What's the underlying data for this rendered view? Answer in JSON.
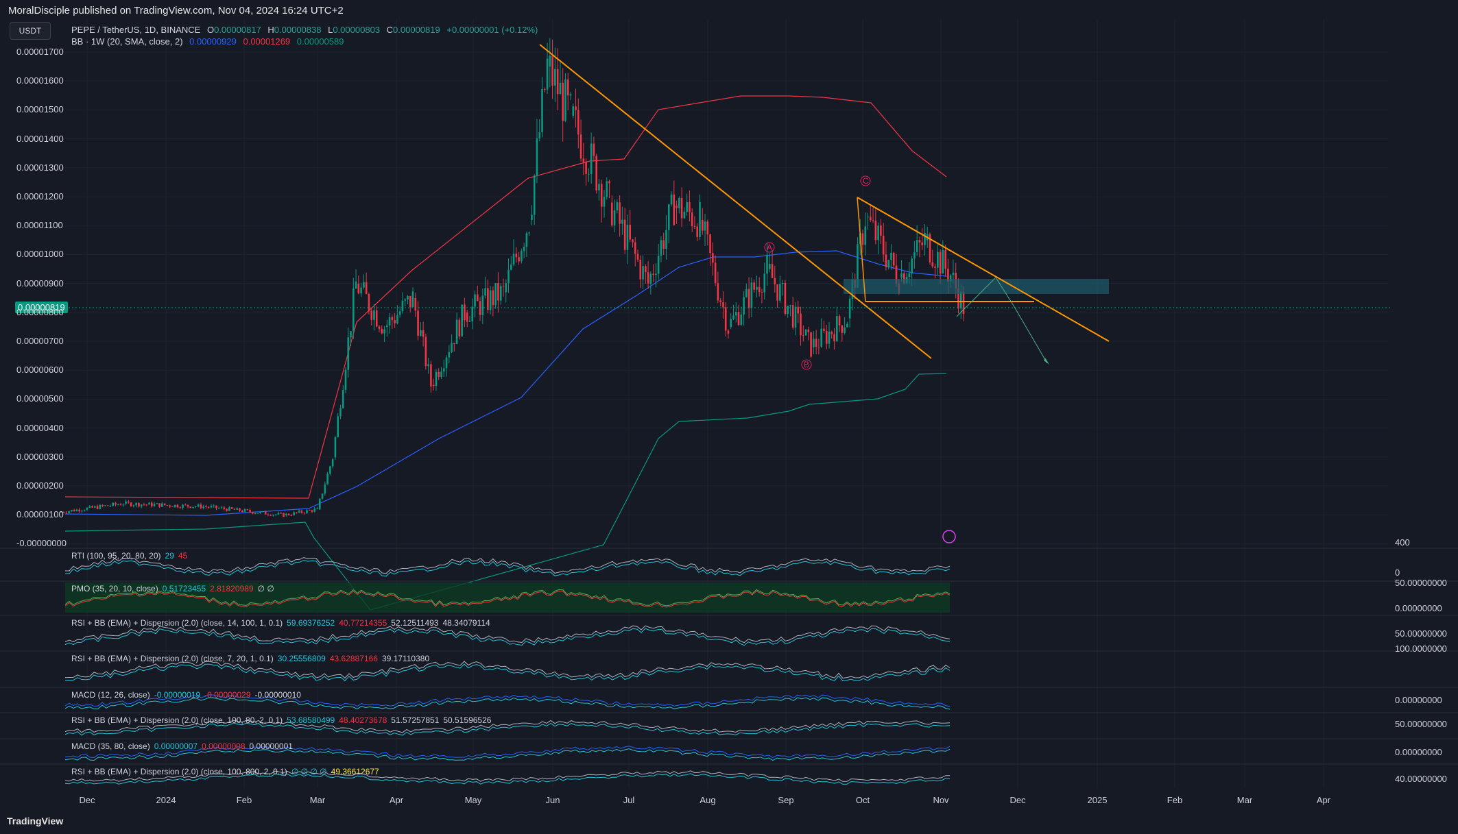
{
  "header": {
    "publisher": "MoralDisciple published on TradingView.com, Nov 04, 2024 16:24 UTC+2"
  },
  "currency_button": "USDT",
  "symbol_line": {
    "symbol": "PEPE / TetherUS, 1D, BINANCE",
    "o_label": "O",
    "o": "0.00000817",
    "h_label": "H",
    "h": "0.00000838",
    "l_label": "L",
    "l": "0.00000803",
    "c_label": "C",
    "c": "0.00000819",
    "change": "+0.00000001 (+0.12%)"
  },
  "bb_line": {
    "label": "BB · 1W (20, SMA, close, 2)",
    "basis": "0.00000929",
    "upper": "0.00001269",
    "lower": "0.00000589"
  },
  "current_price": "0.00000819",
  "wave_labels": [
    "A",
    "B",
    "C"
  ],
  "indicators": [
    {
      "label": "RTI (100, 95, 20, 80, 20)",
      "v1": "29",
      "v2": "45"
    },
    {
      "label": "PMO (35, 20, 10, close)",
      "v1": "0.51723455",
      "v2": "2.81820989",
      "v3": "∅ ∅"
    },
    {
      "label": "RSI + BB (EMA) + Dispersion (2.0) (close, 14, 100, 1, 0.1)",
      "v1": "59.69376252",
      "v2": "40.77214355",
      "v3": "52.12511493",
      "v4": "48.34079114"
    },
    {
      "label": "RSI + BB (EMA) + Dispersion (2.0) (close, 7, 20, 1, 0.1)",
      "v1": "30.25556809",
      "v2": "43.62887166",
      "v3": "39.17110380"
    },
    {
      "label": "MACD (12, 26, close)",
      "v1": "-0.00000019",
      "v2": "-0.00000029",
      "v3": "-0.00000010"
    },
    {
      "label": "RSI + BB (EMA) + Dispersion (2.0) (close, 100, 80, 2, 0.1)",
      "v1": "53.68580499",
      "v2": "48.40273678",
      "v3": "51.57257851",
      "v4": "50.51596526"
    },
    {
      "label": "MACD (35, 80, close)",
      "v1": "0.00000007",
      "v2": "0.00000008",
      "v3": "0.00000001"
    },
    {
      "label": "RSI + BB (EMA) + Dispersion (2.0) (close, 100, 800, 2, 0.1)",
      "v1": "∅ ∅ ∅ ∅",
      "v2": "49.36612677"
    }
  ],
  "pane_scale_labels": [
    "400",
    "0",
    "50.00000000",
    "0.00000000",
    "50.00000000",
    "100.0000000",
    "0.00000000",
    "50.00000000",
    "0.00000000",
    "40.00000000"
  ],
  "footer_logo": "TradingView",
  "colors": {
    "up": "#089981",
    "down": "#f23645",
    "bb_upper": "#f23645",
    "bb_basis": "#2962ff",
    "bb_lower": "#089981",
    "trendline": "#ff9800",
    "wave": "#e91e63",
    "zone": "#1e5d6b"
  },
  "chart_data": {
    "type": "line",
    "title": "PEPE / TetherUS, 1D, BINANCE",
    "xlabel": "",
    "ylabel": "",
    "x_ticks": [
      "Dec",
      "2024",
      "Feb",
      "Mar",
      "Apr",
      "May",
      "Jun",
      "Jul",
      "Aug",
      "Sep",
      "Oct",
      "Nov",
      "Dec",
      "2025",
      "Feb",
      "Mar",
      "Apr"
    ],
    "y_ticks": [
      "0.00001700",
      "0.00001600",
      "0.00001500",
      "0.00001400",
      "0.00001300",
      "0.00001200",
      "0.00001100",
      "0.00001000",
      "0.00000900",
      "0.00000800",
      "0.00000700",
      "0.00000600",
      "0.00000500",
      "0.00000400",
      "0.00000300",
      "0.00000200",
      "0.00000100",
      "-0.00000000"
    ],
    "ylim": [
      0,
      1.79e-05
    ],
    "series": [
      {
        "name": "Price (close, approx)",
        "x": [
          "2023-11-20",
          "2023-12-15",
          "2024-01-15",
          "2024-02-15",
          "2024-02-28",
          "2024-03-05",
          "2024-03-14",
          "2024-03-25",
          "2024-04-05",
          "2024-04-12",
          "2024-04-25",
          "2024-05-10",
          "2024-05-20",
          "2024-05-27",
          "2024-06-05",
          "2024-06-20",
          "2024-07-05",
          "2024-07-15",
          "2024-07-25",
          "2024-08-05",
          "2024-08-20",
          "2024-09-06",
          "2024-09-20",
          "2024-09-27",
          "2024-10-10",
          "2024-10-20",
          "2024-10-30",
          "2024-11-04"
        ],
        "y": [
          1.1e-06,
          1.4e-06,
          1.3e-06,
          1e-06,
          1.2e-06,
          3e-06,
          9e-06,
          7.5e-06,
          8.5e-06,
          5.5e-06,
          8e-06,
          8.7e-06,
          1.12e-05,
          1.65e-05,
          1.48e-05,
          1.18e-05,
          9e-06,
          1.17e-05,
          1.12e-05,
          7.5e-06,
          9.5e-06,
          6.8e-06,
          7.8e-06,
          1.13e-05,
          9.2e-06,
          1.05e-05,
          9.3e-06,
          8.2e-06
        ]
      },
      {
        "name": "BB upper",
        "x": [
          "2023-11-20",
          "2024-02-28",
          "2024-03-20",
          "2024-05-10",
          "2024-06-10",
          "2024-07-01",
          "2024-07-15",
          "2024-08-15",
          "2024-09-30",
          "2024-10-10",
          "2024-11-04"
        ],
        "y": [
          1.6e-06,
          1.6e-06,
          8e-06,
          1.15e-05,
          1.6e-05,
          1.6e-05,
          1.5e-05,
          1.53e-05,
          1.53e-05,
          1.5e-05,
          1.269e-05
        ]
      },
      {
        "name": "BB basis",
        "x": [
          "2023-11-20",
          "2024-02-28",
          "2024-04-15",
          "2024-05-25",
          "2024-07-10",
          "2024-08-15",
          "2024-09-15",
          "2024-10-10",
          "2024-11-04"
        ],
        "y": [
          1e-06,
          1.2e-06,
          4e-06,
          5.5e-06,
          9e-06,
          1e-05,
          1e-05,
          9.8e-06,
          9.29e-06
        ]
      },
      {
        "name": "BB lower",
        "x": [
          "2023-11-20",
          "2024-02-28",
          "2024-03-05",
          "2024-07-01",
          "2024-07-20",
          "2024-08-15",
          "2024-09-10",
          "2024-10-10",
          "2024-10-25",
          "2024-11-04"
        ],
        "y": [
          5e-07,
          7e-07,
          -2e-07,
          2e-06,
          4.3e-06,
          4.3e-06,
          4.9e-06,
          5e-06,
          5.9e-06,
          5.89e-06
        ]
      }
    ]
  }
}
